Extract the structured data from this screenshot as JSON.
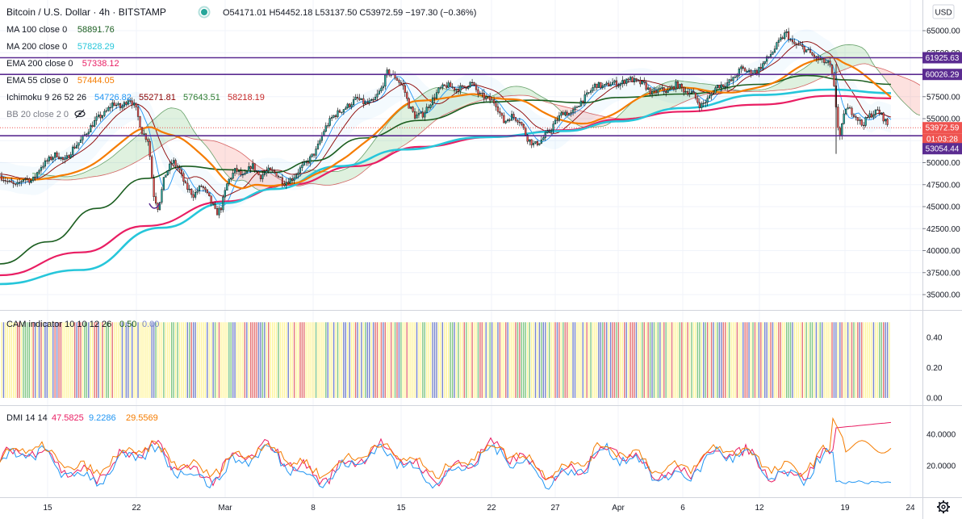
{
  "header": {
    "title": "Bitcoin / U.S. Dollar · 4h · BITSTAMP",
    "ohlc": "O54171.01 H54452.18 L53137.50 C53972.59 −197.30 (−0.36%)",
    "currency_button": "USD"
  },
  "legend": [
    {
      "label": "MA 100 close 0",
      "value": "58891.76",
      "color": "#1b5e20"
    },
    {
      "label": "MA 200 close 0",
      "value": "57828.29",
      "color": "#26c6da"
    },
    {
      "label": "EMA 200 close 0",
      "value": "57338.12",
      "color": "#e91e63"
    },
    {
      "label": "EMA 55 close 0",
      "value": "57444.05",
      "color": "#f57c00"
    }
  ],
  "ichimoku": {
    "label": "Ichimoku 9 26 52 26",
    "values": [
      "54726.82",
      "55271.81",
      "57643.51",
      "58218.19"
    ],
    "colors": [
      "#2196f3",
      "#8b0000",
      "#2e7d32",
      "#c62828"
    ]
  },
  "bb": {
    "label": "BB 20 close 2 0"
  },
  "cam": {
    "label": "CAM indicator 10 10 12 26",
    "values": [
      "0.50",
      "0.00"
    ],
    "ticks": [
      "0.40",
      "0.20",
      "0.00"
    ]
  },
  "dmi": {
    "label": "DMI 14 14",
    "values": [
      "47.5825",
      "9.2286",
      "29.5569"
    ],
    "colors": [
      "#e91e63",
      "#2196f3",
      "#f57c00"
    ],
    "ticks": [
      "40.0000",
      "20.0000"
    ]
  },
  "price_labels": [
    {
      "text": "61925.63",
      "color": "#5b2c91"
    },
    {
      "text": "60026.29",
      "color": "#5b2c91"
    },
    {
      "text": "53972.59",
      "color": "#ef5350"
    },
    {
      "text": "01:03:28",
      "color": "#ef5350"
    },
    {
      "text": "53054.44",
      "color": "#5b2c91"
    }
  ],
  "chart_data": {
    "type": "candlestick",
    "y_ticks": [
      "65000.00",
      "62500.00",
      "60000.00",
      "57500.00",
      "55000.00",
      "52500.00",
      "50000.00",
      "47500.00",
      "45000.00",
      "42500.00",
      "40000.00",
      "37500.00",
      "35000.00"
    ],
    "x_ticks": [
      "15",
      "22",
      "Mar",
      "8",
      "15",
      "22",
      "27",
      "Apr",
      "6",
      "12",
      "19",
      "24"
    ],
    "horizontal_levels": [
      61925.63,
      60026.29,
      53054.44
    ],
    "last_price": 53972.59,
    "close_path": [
      [
        0,
        48500
      ],
      [
        10,
        47800
      ],
      [
        20,
        47300
      ],
      [
        30,
        48300
      ],
      [
        40,
        47900
      ],
      [
        50,
        49500
      ],
      [
        60,
        50300
      ],
      [
        70,
        51000
      ],
      [
        80,
        50100
      ],
      [
        90,
        51600
      ],
      [
        100,
        52500
      ],
      [
        110,
        53800
      ],
      [
        120,
        55000
      ],
      [
        130,
        55600
      ],
      [
        140,
        56800
      ],
      [
        150,
        56200
      ],
      [
        160,
        57400
      ],
      [
        168,
        56200
      ],
      [
        176,
        53500
      ],
      [
        184,
        52500
      ],
      [
        190,
        46500
      ],
      [
        196,
        44800
      ],
      [
        204,
        48500
      ],
      [
        214,
        50200
      ],
      [
        222,
        49200
      ],
      [
        230,
        47300
      ],
      [
        240,
        46300
      ],
      [
        250,
        47400
      ],
      [
        260,
        45800
      ],
      [
        268,
        44200
      ],
      [
        274,
        44900
      ],
      [
        282,
        47800
      ],
      [
        292,
        49200
      ],
      [
        302,
        48300
      ],
      [
        312,
        49800
      ],
      [
        322,
        48400
      ],
      [
        332,
        49100
      ],
      [
        342,
        48800
      ],
      [
        352,
        47700
      ],
      [
        362,
        48200
      ],
      [
        372,
        49300
      ],
      [
        382,
        50200
      ],
      [
        392,
        51400
      ],
      [
        402,
        53800
      ],
      [
        412,
        55200
      ],
      [
        422,
        55900
      ],
      [
        432,
        56500
      ],
      [
        442,
        57300
      ],
      [
        452,
        56700
      ],
      [
        462,
        56900
      ],
      [
        472,
        58300
      ],
      [
        480,
        60300
      ],
      [
        490,
        59700
      ],
      [
        500,
        58600
      ],
      [
        506,
        56600
      ],
      [
        514,
        55300
      ],
      [
        524,
        55500
      ],
      [
        534,
        56900
      ],
      [
        544,
        58300
      ],
      [
        554,
        58800
      ],
      [
        564,
        58400
      ],
      [
        574,
        58500
      ],
      [
        584,
        59100
      ],
      [
        594,
        57700
      ],
      [
        604,
        57300
      ],
      [
        614,
        56800
      ],
      [
        624,
        54600
      ],
      [
        634,
        55300
      ],
      [
        644,
        54800
      ],
      [
        654,
        52700
      ],
      [
        662,
        52000
      ],
      [
        670,
        52500
      ],
      [
        678,
        53300
      ],
      [
        688,
        54600
      ],
      [
        698,
        55800
      ],
      [
        708,
        55500
      ],
      [
        718,
        56800
      ],
      [
        728,
        57700
      ],
      [
        738,
        58900
      ],
      [
        748,
        58600
      ],
      [
        758,
        59100
      ],
      [
        768,
        58900
      ],
      [
        778,
        59600
      ],
      [
        788,
        59200
      ],
      [
        798,
        58900
      ],
      [
        808,
        57800
      ],
      [
        818,
        58300
      ],
      [
        828,
        58100
      ],
      [
        838,
        58900
      ],
      [
        848,
        58200
      ],
      [
        858,
        57900
      ],
      [
        868,
        56400
      ],
      [
        878,
        57300
      ],
      [
        888,
        58700
      ],
      [
        898,
        58900
      ],
      [
        908,
        59400
      ],
      [
        918,
        60700
      ],
      [
        928,
        60300
      ],
      [
        938,
        60400
      ],
      [
        948,
        61500
      ],
      [
        958,
        62700
      ],
      [
        966,
        63800
      ],
      [
        974,
        64800
      ],
      [
        982,
        63500
      ],
      [
        992,
        63200
      ],
      [
        1002,
        62600
      ],
      [
        1010,
        61900
      ],
      [
        1020,
        61500
      ],
      [
        1028,
        61200
      ],
      [
        1034,
        58200
      ],
      [
        1040,
        52600
      ],
      [
        1048,
        56300
      ],
      [
        1058,
        55600
      ],
      [
        1068,
        54300
      ],
      [
        1078,
        55400
      ],
      [
        1088,
        55900
      ],
      [
        1096,
        54900
      ],
      [
        1102,
        53972.59
      ]
    ],
    "series": [
      {
        "name": "MA 100 close 0",
        "last": 58891.76,
        "color": "#1b5e20"
      },
      {
        "name": "MA 200 close 0",
        "last": 57828.29,
        "color": "#26c6da"
      },
      {
        "name": "EMA 200 close 0",
        "last": 57338.12,
        "color": "#e91e63"
      },
      {
        "name": "EMA 55 close 0",
        "last": 57444.05,
        "color": "#f57c00"
      }
    ]
  }
}
